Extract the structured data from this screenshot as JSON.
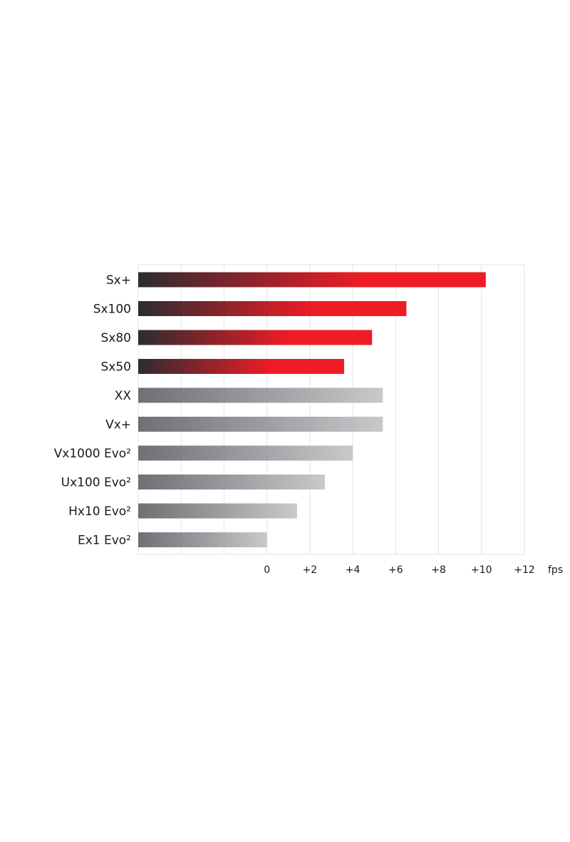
{
  "chart_data": {
    "type": "bar",
    "orientation": "horizontal",
    "categories": [
      "Sx+",
      "Sx100",
      "Sx80",
      "Sx50",
      "XX",
      "Vx+",
      "Vx1000 Evo²",
      "Ux100 Evo²",
      "Hx10 Evo²",
      "Ex1 Evo²"
    ],
    "values": [
      10.2,
      6.5,
      4.9,
      3.6,
      5.4,
      5.4,
      4.0,
      2.7,
      1.4,
      0.0
    ],
    "highlight_categories": [
      "Sx+",
      "Sx100",
      "Sx80",
      "Sx50"
    ],
    "tick_values": [
      0,
      2,
      4,
      6,
      8,
      10,
      12
    ],
    "tick_labels": [
      "0",
      "+2",
      "+4",
      "+6",
      "+8",
      "+10",
      "+12"
    ],
    "xlabel": "fps",
    "xlim": [
      -6,
      12
    ],
    "grid": "vertical"
  },
  "colors": {
    "highlight_start": "#2c2c31",
    "highlight_end": "#ee1c25",
    "standard_start": "#6f6f74",
    "standard_end": "#c9c9cc",
    "grid": "#e3e3e3"
  }
}
